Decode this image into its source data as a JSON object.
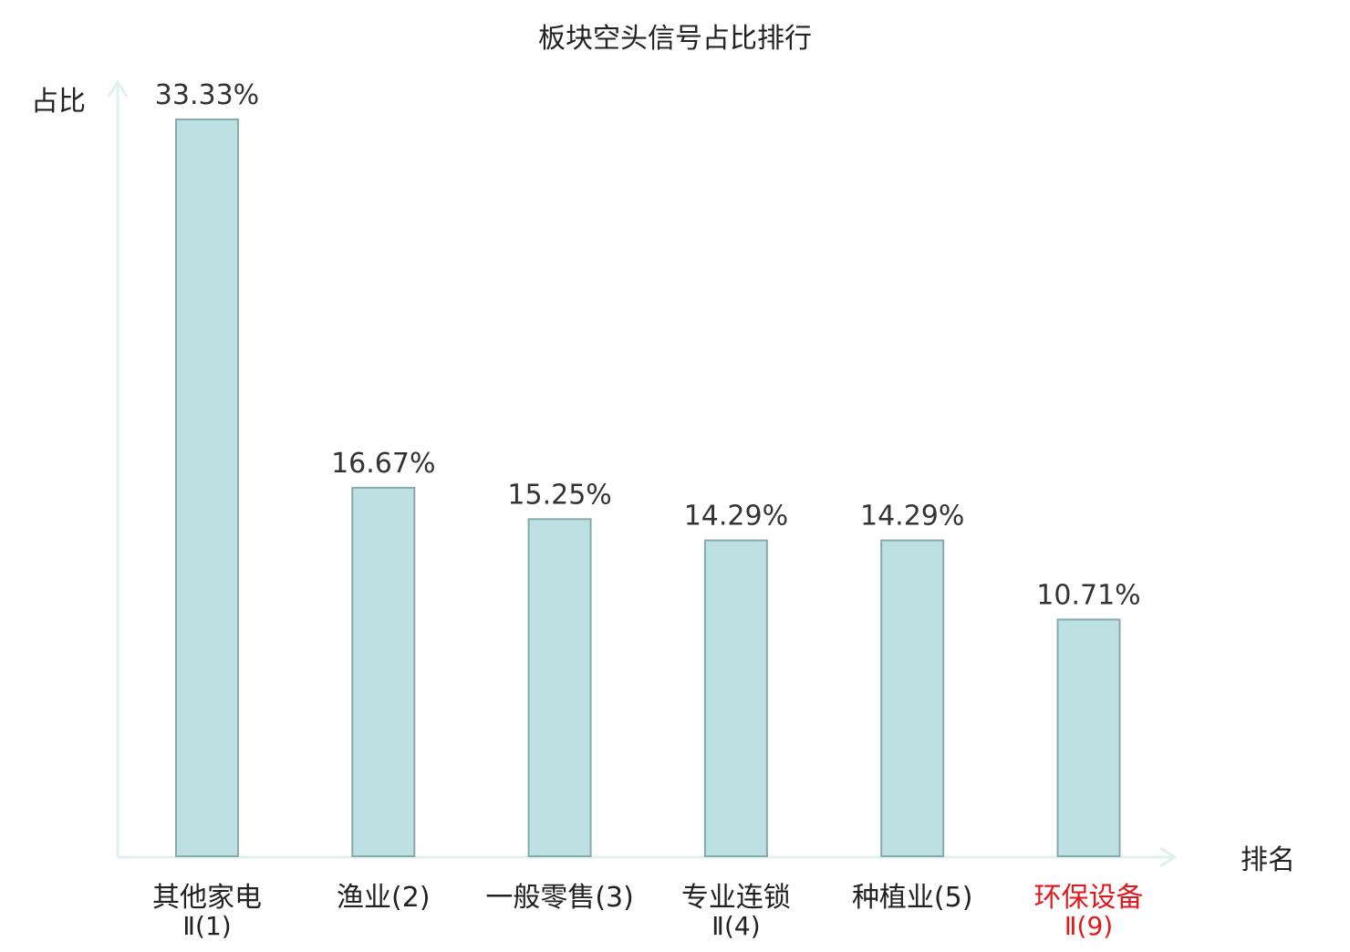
{
  "chart_data": {
    "type": "bar",
    "title": "板块空头信号占比排行",
    "ylabel": "占比",
    "xlabel": "排名",
    "ylim": [
      0,
      35
    ],
    "grid": false,
    "categories": [
      [
        "其他家电",
        "Ⅱ(1)"
      ],
      [
        "渔业(2)"
      ],
      [
        "一般零售(3)"
      ],
      [
        "专业连锁",
        "Ⅱ(4)"
      ],
      [
        "种植业(5)"
      ],
      [
        "环保设备",
        "Ⅱ(9)"
      ]
    ],
    "values": [
      33.33,
      16.67,
      15.25,
      14.29,
      14.29,
      10.71
    ],
    "value_labels": [
      "33.33%",
      "16.67%",
      "15.25%",
      "14.29%",
      "14.29%",
      "10.71%"
    ],
    "highlight_index": 5,
    "colors": {
      "bar_fill": "#bde0e2",
      "bar_stroke": "#8aa9aa",
      "axis": "#dff1ee",
      "text": "#222222",
      "value_text": "#333333",
      "highlight_text": "#e0191f"
    }
  }
}
